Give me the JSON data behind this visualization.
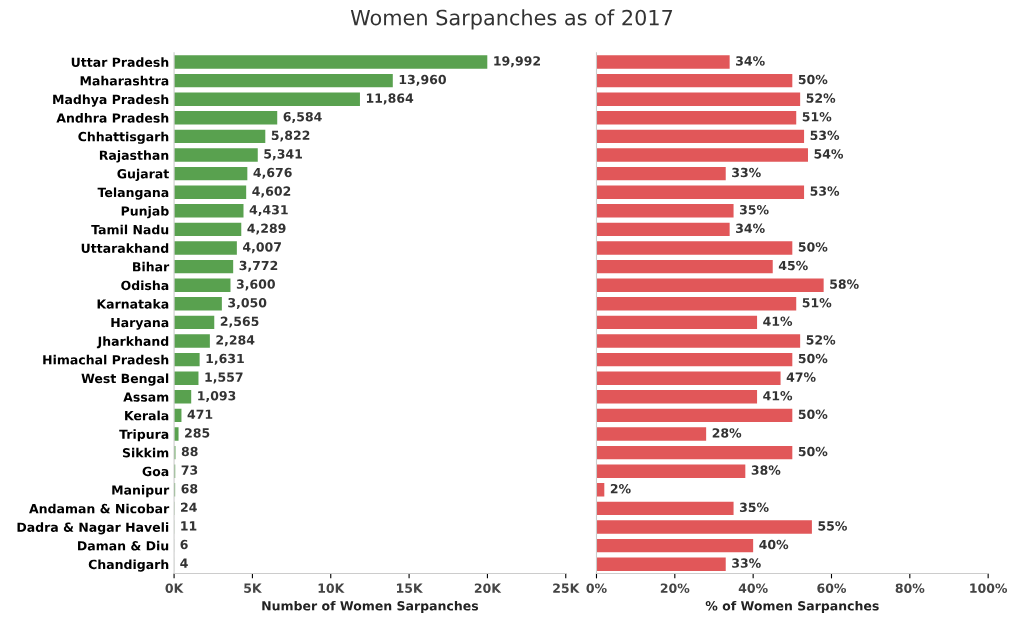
{
  "chart_data": [
    {
      "type": "bar",
      "orientation": "horizontal",
      "title": "Women Sarpanches as of 2017",
      "xlabel": "Number of Women Sarpanches",
      "categories": [
        "Uttar Pradesh",
        "Maharashtra",
        "Madhya Pradesh",
        "Andhra Pradesh",
        "Chhattisgarh",
        "Rajasthan",
        "Gujarat",
        "Telangana",
        "Punjab",
        "Tamil Nadu",
        "Uttarakhand",
        "Bihar",
        "Odisha",
        "Karnataka",
        "Haryana",
        "Jharkhand",
        "Himachal Pradesh",
        "West Bengal",
        "Assam",
        "Kerala",
        "Tripura",
        "Sikkim",
        "Goa",
        "Manipur",
        "Andaman & Nicobar",
        "Dadra & Nagar Haveli",
        "Daman & Diu",
        "Chandigarh"
      ],
      "values": [
        19992,
        13960,
        11864,
        6584,
        5822,
        5341,
        4676,
        4602,
        4431,
        4289,
        4007,
        3772,
        3600,
        3050,
        2565,
        2284,
        1631,
        1557,
        1093,
        471,
        285,
        88,
        73,
        68,
        24,
        11,
        6,
        4
      ],
      "value_labels": [
        "19,992",
        "13,960",
        "11,864",
        "6,584",
        "5,822",
        "5,341",
        "4,676",
        "4,602",
        "4,431",
        "4,289",
        "4,007",
        "3,772",
        "3,600",
        "3,050",
        "2,565",
        "2,284",
        "1,631",
        "1,557",
        "1,093",
        "471",
        "285",
        "88",
        "73",
        "68",
        "24",
        "11",
        "6",
        "4"
      ],
      "color": "#59a14f",
      "xlim": [
        0,
        25000
      ],
      "xticks": [
        {
          "value": 0,
          "label": "0K"
        },
        {
          "value": 5000,
          "label": "5K"
        },
        {
          "value": 10000,
          "label": "10K"
        },
        {
          "value": 15000,
          "label": "15K"
        },
        {
          "value": 20000,
          "label": "20K"
        },
        {
          "value": 25000,
          "label": "25K"
        }
      ]
    },
    {
      "type": "bar",
      "orientation": "horizontal",
      "xlabel": "% of Women Sarpanches",
      "tick_labels": "x",
      "values": [
        34,
        50,
        52,
        51,
        53,
        54,
        33,
        53,
        35,
        34,
        50,
        45,
        58,
        51,
        41,
        52,
        50,
        47,
        41,
        50,
        28,
        50,
        38,
        2,
        35,
        55,
        40,
        33
      ],
      "value_labels": [
        "34%",
        "50%",
        "52%",
        "51%",
        "53%",
        "54%",
        "33%",
        "53%",
        "35%",
        "34%",
        "50%",
        "45%",
        "58%",
        "51%",
        "41%",
        "52%",
        "50%",
        "47%",
        "41%",
        "50%",
        "28%",
        "50%",
        "38%",
        "2%",
        "35%",
        "55%",
        "40%",
        "33%"
      ],
      "color": "#e15759",
      "xlim": [
        0,
        100
      ],
      "xticks": [
        {
          "value": 0,
          "label": "0%"
        },
        {
          "value": 20,
          "label": "20%"
        },
        {
          "value": 40,
          "label": "40%"
        },
        {
          "value": 60,
          "label": "60%"
        },
        {
          "value": 80,
          "label": "80%"
        },
        {
          "value": 100,
          "label": "100%"
        }
      ]
    }
  ]
}
